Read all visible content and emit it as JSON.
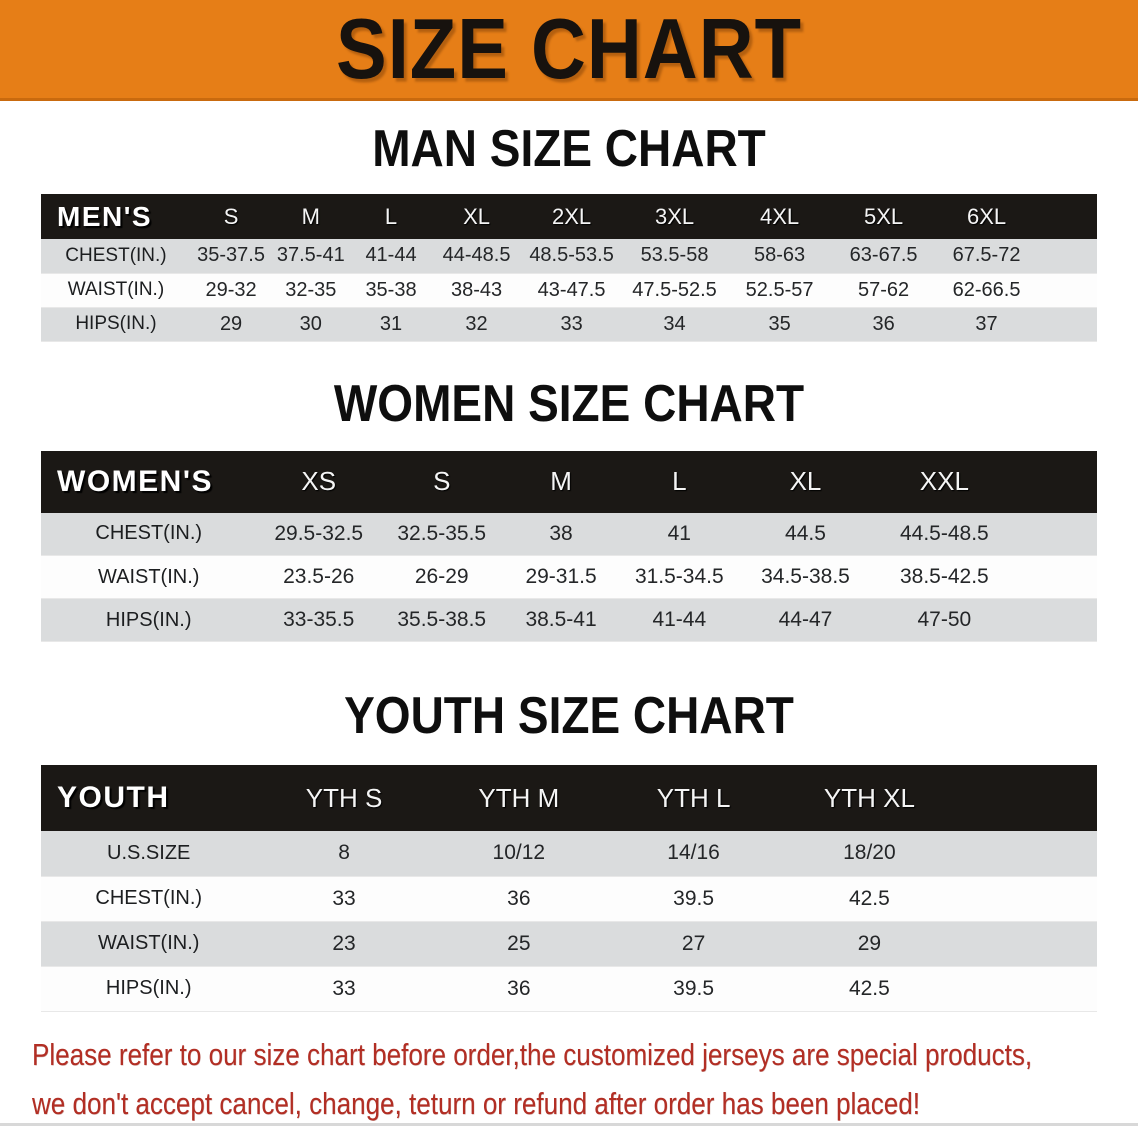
{
  "banner": {
    "title": "SIZE CHART",
    "bg_color": "#E67E17",
    "text_color": "#17120E"
  },
  "sections": [
    {
      "heading": "MAN SIZE CHART",
      "table": {
        "label": "MEN'S",
        "sizes": [
          "S",
          "M",
          "L",
          "XL",
          "2XL",
          "3XL",
          "4XL",
          "5XL",
          "6XL"
        ],
        "rows": [
          {
            "label": "CHEST(IN.)",
            "values": [
              "35-37.5",
              "37.5-41",
              "41-44",
              "44-48.5",
              "48.5-53.5",
              "53.5-58",
              "58-63",
              "63-67.5",
              "67.5-72"
            ]
          },
          {
            "label": "WAIST(IN.)",
            "values": [
              "29-32",
              "32-35",
              "35-38",
              "38-43",
              "43-47.5",
              "47.5-52.5",
              "52.5-57",
              "57-62",
              "62-66.5"
            ]
          },
          {
            "label": "HIPS(IN.)",
            "values": [
              "29",
              "30",
              "31",
              "32",
              "33",
              "34",
              "35",
              "36",
              "37"
            ]
          }
        ]
      }
    },
    {
      "heading": "WOMEN SIZE CHART",
      "table": {
        "label": "WOMEN'S",
        "sizes": [
          "XS",
          "S",
          "M",
          "L",
          "XL",
          "XXL"
        ],
        "rows": [
          {
            "label": "CHEST(IN.)",
            "values": [
              "29.5-32.5",
              "32.5-35.5",
              "38",
              "41",
              "44.5",
              "44.5-48.5"
            ]
          },
          {
            "label": "WAIST(IN.)",
            "values": [
              "23.5-26",
              "26-29",
              "29-31.5",
              "31.5-34.5",
              "34.5-38.5",
              "38.5-42.5"
            ]
          },
          {
            "label": "HIPS(IN.)",
            "values": [
              "33-35.5",
              "35.5-38.5",
              "38.5-41",
              "41-44",
              "44-47",
              "47-50"
            ]
          }
        ]
      }
    },
    {
      "heading": "YOUTH SIZE CHART",
      "table": {
        "label": "YOUTH",
        "sizes": [
          "YTH S",
          "YTH M",
          "YTH L",
          "YTH XL"
        ],
        "rows": [
          {
            "label": "U.S.SIZE",
            "values": [
              "8",
              "10/12",
              "14/16",
              "18/20"
            ]
          },
          {
            "label": "CHEST(IN.)",
            "values": [
              "33",
              "36",
              "39.5",
              "42.5"
            ]
          },
          {
            "label": "WAIST(IN.)",
            "values": [
              "23",
              "25",
              "27",
              "29"
            ]
          },
          {
            "label": "HIPS(IN.)",
            "values": [
              "33",
              "36",
              "39.5",
              "42.5"
            ]
          }
        ]
      }
    }
  ],
  "disclaimer": {
    "line1": "Please refer to our size chart before order,the customized jerseys are special products,",
    "line2": "we don't accept cancel, change, teturn or refund after order has been placed!",
    "text_color": "#B22E24"
  },
  "style_colors": {
    "table_header_bar": "#1B1815",
    "row_stripe_gray": "#DADCDD",
    "row_stripe_white": "#FDFDFD"
  }
}
